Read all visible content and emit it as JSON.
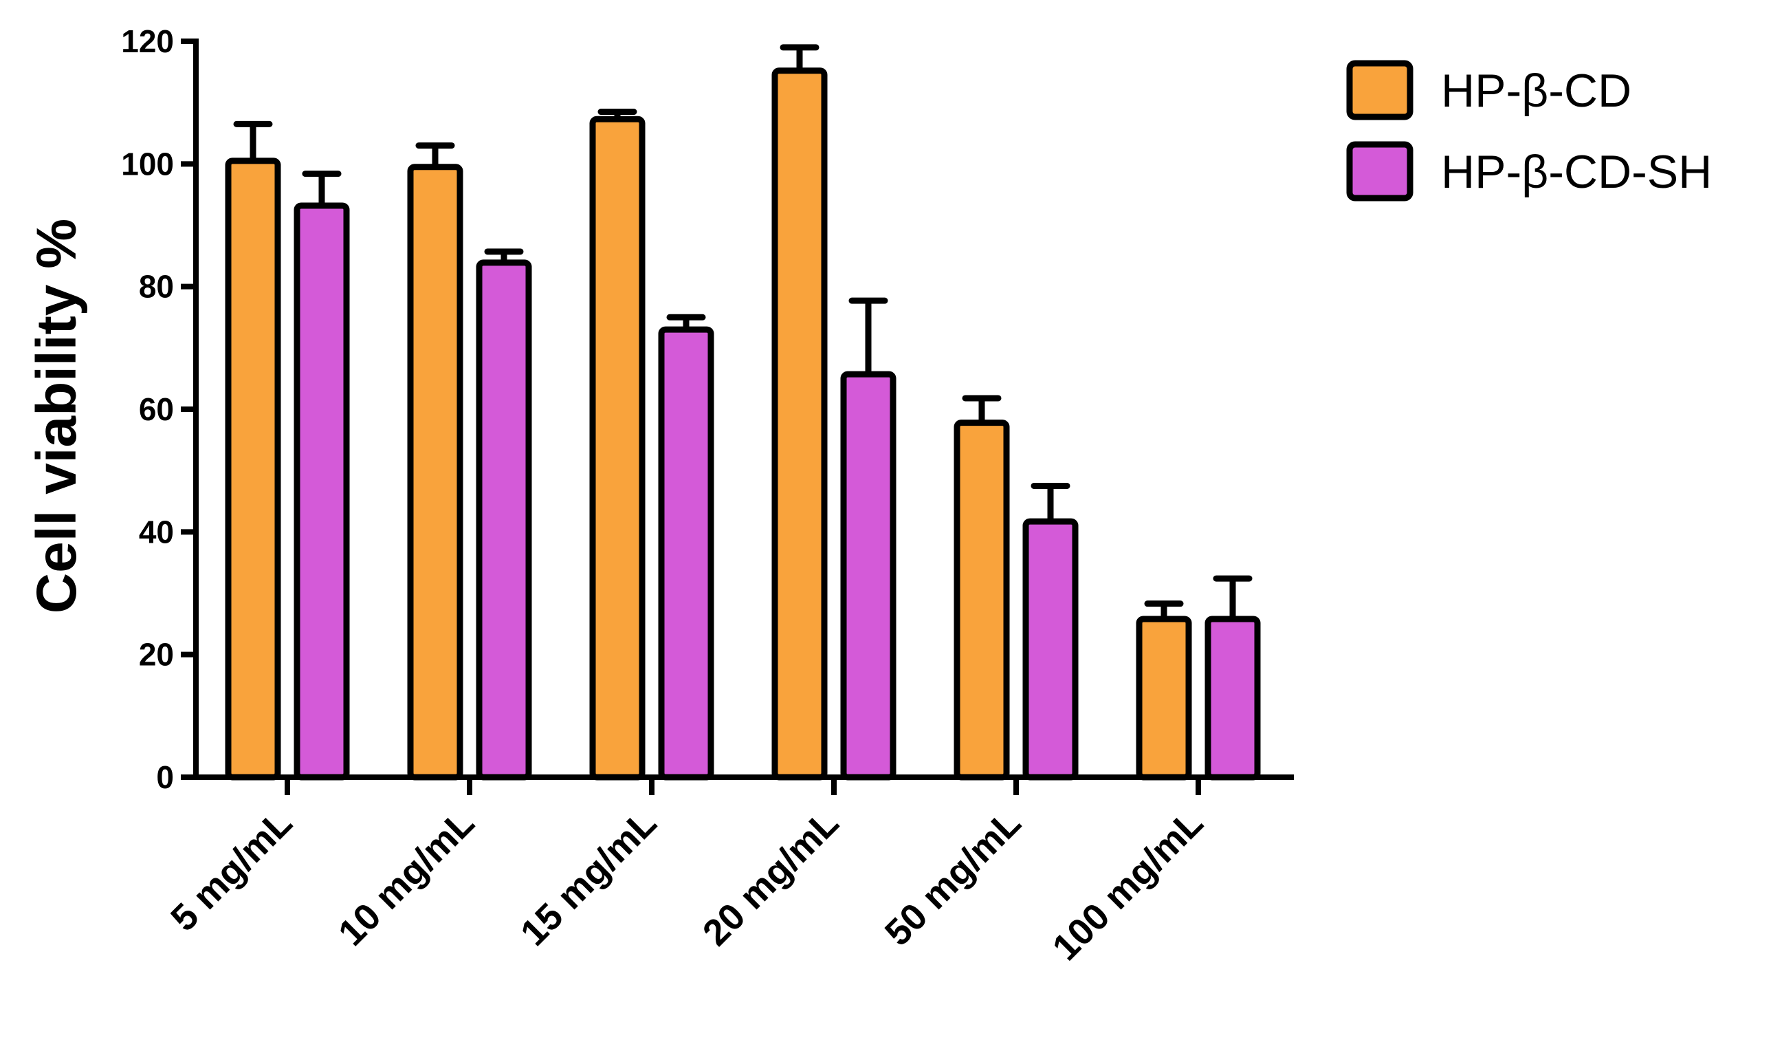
{
  "chart_data": {
    "type": "bar",
    "title": "",
    "xlabel": "",
    "ylabel": "Cell viability %",
    "ylim": [
      0,
      120
    ],
    "yticks": [
      0,
      20,
      40,
      60,
      80,
      100,
      120
    ],
    "grid": false,
    "legend_position": "top-right",
    "categories": [
      "5 mg/mL",
      "10 mg/mL",
      "15 mg/mL",
      "20 mg/mL",
      "50 mg/mL",
      "100 mg/mL"
    ],
    "series": [
      {
        "name": "HP-β-CD",
        "color": "#F9A33C",
        "values": [
          100.5,
          99.5,
          107.3,
          115.2,
          57.8,
          25.8
        ],
        "errors": [
          6.0,
          3.5,
          1.2,
          3.8,
          4.0,
          2.5
        ]
      },
      {
        "name": "HP-β-CD-SH",
        "color": "#D45AD8",
        "values": [
          93.2,
          83.9,
          73.0,
          65.7,
          41.7,
          25.8
        ],
        "errors": [
          5.2,
          1.8,
          2.0,
          12.0,
          5.8,
          6.6
        ]
      }
    ]
  }
}
